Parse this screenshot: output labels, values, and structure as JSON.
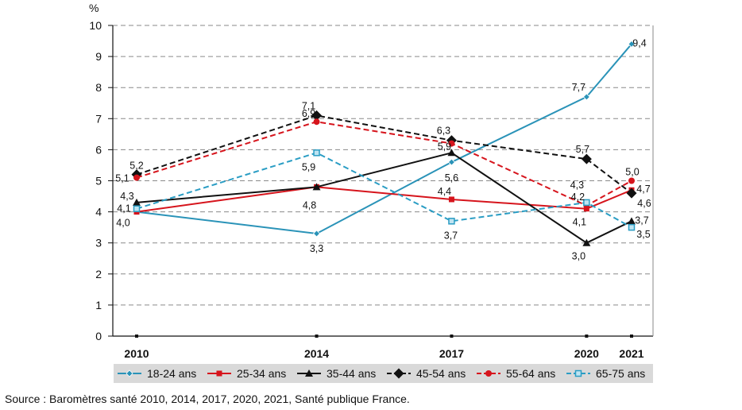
{
  "source": "Source : Baromètres santé 2010, 2014, 2017, 2020, 2021, Santé publique France.",
  "chart_data": {
    "type": "line",
    "unit_label": "%",
    "x": [
      2010,
      2014,
      2017,
      2020,
      2021
    ],
    "x_labels": [
      "2010",
      "2014",
      "2017",
      "2020",
      "2021"
    ],
    "ylim": [
      0,
      10
    ],
    "yticks": [
      0,
      1,
      2,
      3,
      4,
      5,
      6,
      7,
      8,
      9,
      10
    ],
    "grid": true,
    "legend_position": "bottom",
    "series": [
      {
        "name": "18-24 ans",
        "values": [
          4.0,
          3.3,
          5.6,
          7.7,
          9.4
        ],
        "labels": [
          "",
          "3,3",
          "5,6",
          "7,7",
          "9,4"
        ],
        "color": "#2a93b8",
        "dash": false,
        "marker": "diamond-small"
      },
      {
        "name": "25-34 ans",
        "values": [
          4.0,
          4.8,
          4.4,
          4.1,
          4.7
        ],
        "labels": [
          "4,0",
          "4,8",
          "4,4",
          "4,1",
          "4,7"
        ],
        "color": "#d6141c",
        "dash": false,
        "marker": "square"
      },
      {
        "name": "35-44 ans",
        "values": [
          4.3,
          4.8,
          5.9,
          3.0,
          3.7
        ],
        "labels": [
          "4,3",
          "",
          "5,9",
          "3,0",
          "3,7"
        ],
        "color": "#111111",
        "dash": false,
        "marker": "triangle"
      },
      {
        "name": "45-54 ans",
        "values": [
          5.2,
          7.1,
          6.3,
          5.7,
          4.6
        ],
        "labels": [
          "5,2",
          "7,1",
          "6,3",
          "5,7",
          "4,6"
        ],
        "color": "#111111",
        "dash": true,
        "marker": "diamond"
      },
      {
        "name": "55-64 ans",
        "values": [
          5.1,
          6.9,
          6.2,
          4.2,
          5.0
        ],
        "labels": [
          "5,1",
          "6,9",
          "",
          "4,2",
          "5,0"
        ],
        "color": "#d6141c",
        "dash": true,
        "marker": "circle"
      },
      {
        "name": "65-75 ans",
        "values": [
          4.1,
          5.9,
          3.7,
          4.3,
          3.5
        ],
        "labels": [
          "4,1",
          "5,9",
          "3,7",
          "4,3",
          "3,5"
        ],
        "color": "#2a9dc4",
        "dash": true,
        "marker": "square-open"
      }
    ]
  }
}
